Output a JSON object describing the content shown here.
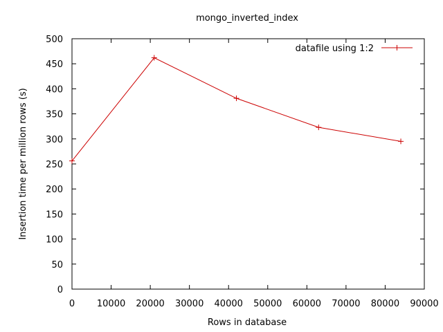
{
  "chart_data": {
    "type": "line",
    "title": "mongo_inverted_index",
    "xlabel": "Rows in database",
    "ylabel": "Insertion time per million rows (s)",
    "xlim": [
      0,
      90000
    ],
    "ylim": [
      0,
      500
    ],
    "xticks": [
      0,
      10000,
      20000,
      30000,
      40000,
      50000,
      60000,
      70000,
      80000,
      90000
    ],
    "yticks": [
      0,
      50,
      100,
      150,
      200,
      250,
      300,
      350,
      400,
      450,
      500
    ],
    "grid": false,
    "legend_position": "top-right",
    "series": [
      {
        "name": "datafile using 1:2",
        "color": "#cc0000",
        "marker": "plus",
        "x": [
          0,
          21000,
          42000,
          63000,
          84000
        ],
        "y": [
          256,
          462,
          381,
          323,
          295
        ]
      }
    ]
  }
}
